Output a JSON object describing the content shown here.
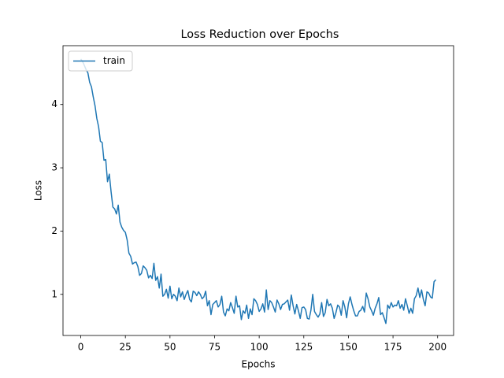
{
  "chart_data": {
    "type": "line",
    "title": "Loss Reduction over Epochs",
    "x_label": "Epochs",
    "y_label": "Loss",
    "x": [
      0,
      1,
      2,
      3,
      4,
      5,
      6,
      7,
      8,
      9,
      10,
      11,
      12,
      13,
      14,
      15,
      16,
      17,
      18,
      19,
      20,
      21,
      22,
      23,
      24,
      25,
      26,
      27,
      28,
      29,
      30,
      31,
      32,
      33,
      34,
      35,
      36,
      37,
      38,
      39,
      40,
      41,
      42,
      43,
      44,
      45,
      46,
      47,
      48,
      49,
      50,
      51,
      52,
      53,
      54,
      55,
      56,
      57,
      58,
      59,
      60,
      61,
      62,
      63,
      64,
      65,
      66,
      67,
      68,
      69,
      70,
      71,
      72,
      73,
      74,
      75,
      76,
      77,
      78,
      79,
      80,
      81,
      82,
      83,
      84,
      85,
      86,
      87,
      88,
      89,
      90,
      91,
      92,
      93,
      94,
      95,
      96,
      97,
      98,
      99,
      100,
      101,
      102,
      103,
      104,
      105,
      106,
      107,
      108,
      109,
      110,
      111,
      112,
      113,
      114,
      115,
      116,
      117,
      118,
      119,
      120,
      121,
      122,
      123,
      124,
      125,
      126,
      127,
      128,
      129,
      130,
      131,
      132,
      133,
      134,
      135,
      136,
      137,
      138,
      139,
      140,
      141,
      142,
      143,
      144,
      145,
      146,
      147,
      148,
      149,
      150,
      151,
      152,
      153,
      154,
      155,
      156,
      157,
      158,
      159,
      160,
      161,
      162,
      163,
      164,
      165,
      166,
      167,
      168,
      169,
      170,
      171,
      172,
      173,
      174,
      175,
      176,
      177,
      178,
      179,
      180,
      181,
      182,
      183,
      184,
      185,
      186,
      187,
      188,
      189,
      190,
      191,
      192,
      193,
      194,
      195,
      196,
      197,
      198,
      199
    ],
    "series": [
      {
        "name": "train",
        "color": "#1f77b4",
        "values": [
          4.72,
          4.68,
          4.62,
          4.55,
          4.5,
          4.35,
          4.28,
          4.12,
          3.98,
          3.78,
          3.65,
          3.42,
          3.4,
          3.12,
          3.13,
          2.78,
          2.9,
          2.62,
          2.38,
          2.35,
          2.27,
          2.41,
          2.14,
          2.06,
          2.01,
          1.98,
          1.86,
          1.65,
          1.6,
          1.48,
          1.5,
          1.51,
          1.44,
          1.3,
          1.33,
          1.45,
          1.42,
          1.38,
          1.26,
          1.3,
          1.25,
          1.49,
          1.22,
          1.28,
          1.1,
          1.32,
          0.97,
          1.0,
          1.08,
          0.94,
          1.13,
          0.93,
          1.0,
          0.97,
          0.9,
          1.1,
          0.96,
          1.04,
          0.92,
          1.0,
          1.06,
          0.92,
          0.88,
          1.05,
          1.03,
          0.98,
          1.04,
          1.0,
          0.93,
          0.96,
          1.05,
          0.82,
          0.9,
          0.68,
          0.84,
          0.87,
          0.9,
          0.8,
          0.84,
          0.97,
          0.72,
          0.66,
          0.77,
          0.74,
          0.87,
          0.79,
          0.7,
          0.97,
          0.8,
          0.82,
          0.6,
          0.74,
          0.7,
          0.83,
          0.62,
          0.77,
          0.68,
          0.93,
          0.9,
          0.84,
          0.73,
          0.77,
          0.85,
          0.72,
          1.07,
          0.76,
          0.9,
          0.87,
          0.8,
          0.72,
          0.91,
          0.85,
          0.76,
          0.84,
          0.85,
          0.88,
          0.91,
          0.75,
          0.99,
          0.82,
          0.69,
          0.84,
          0.74,
          0.62,
          0.79,
          0.8,
          0.76,
          0.62,
          0.61,
          0.75,
          1.0,
          0.73,
          0.68,
          0.64,
          0.69,
          0.87,
          0.65,
          0.71,
          0.92,
          0.82,
          0.85,
          0.78,
          0.62,
          0.71,
          0.83,
          0.8,
          0.67,
          0.9,
          0.8,
          0.63,
          0.85,
          0.96,
          0.84,
          0.74,
          0.66,
          0.66,
          0.73,
          0.75,
          0.81,
          0.72,
          1.02,
          0.93,
          0.8,
          0.74,
          0.67,
          0.78,
          0.85,
          0.95,
          0.68,
          0.71,
          0.63,
          0.54,
          0.83,
          0.78,
          0.87,
          0.8,
          0.83,
          0.82,
          0.9,
          0.78,
          0.84,
          0.75,
          0.93,
          0.82,
          0.7,
          0.78,
          0.7,
          0.93,
          0.98,
          1.1,
          0.95,
          1.07,
          0.92,
          0.82,
          1.04,
          1.02,
          0.96,
          0.94,
          1.2,
          1.23
        ]
      }
    ],
    "xlim": [
      -9.95,
      208.95
    ],
    "ylim": [
      0.35,
      4.93
    ],
    "xticks": [
      0,
      25,
      50,
      75,
      100,
      125,
      150,
      175,
      200
    ],
    "yticks": [
      1,
      2,
      3,
      4
    ],
    "legend": "upper left"
  }
}
